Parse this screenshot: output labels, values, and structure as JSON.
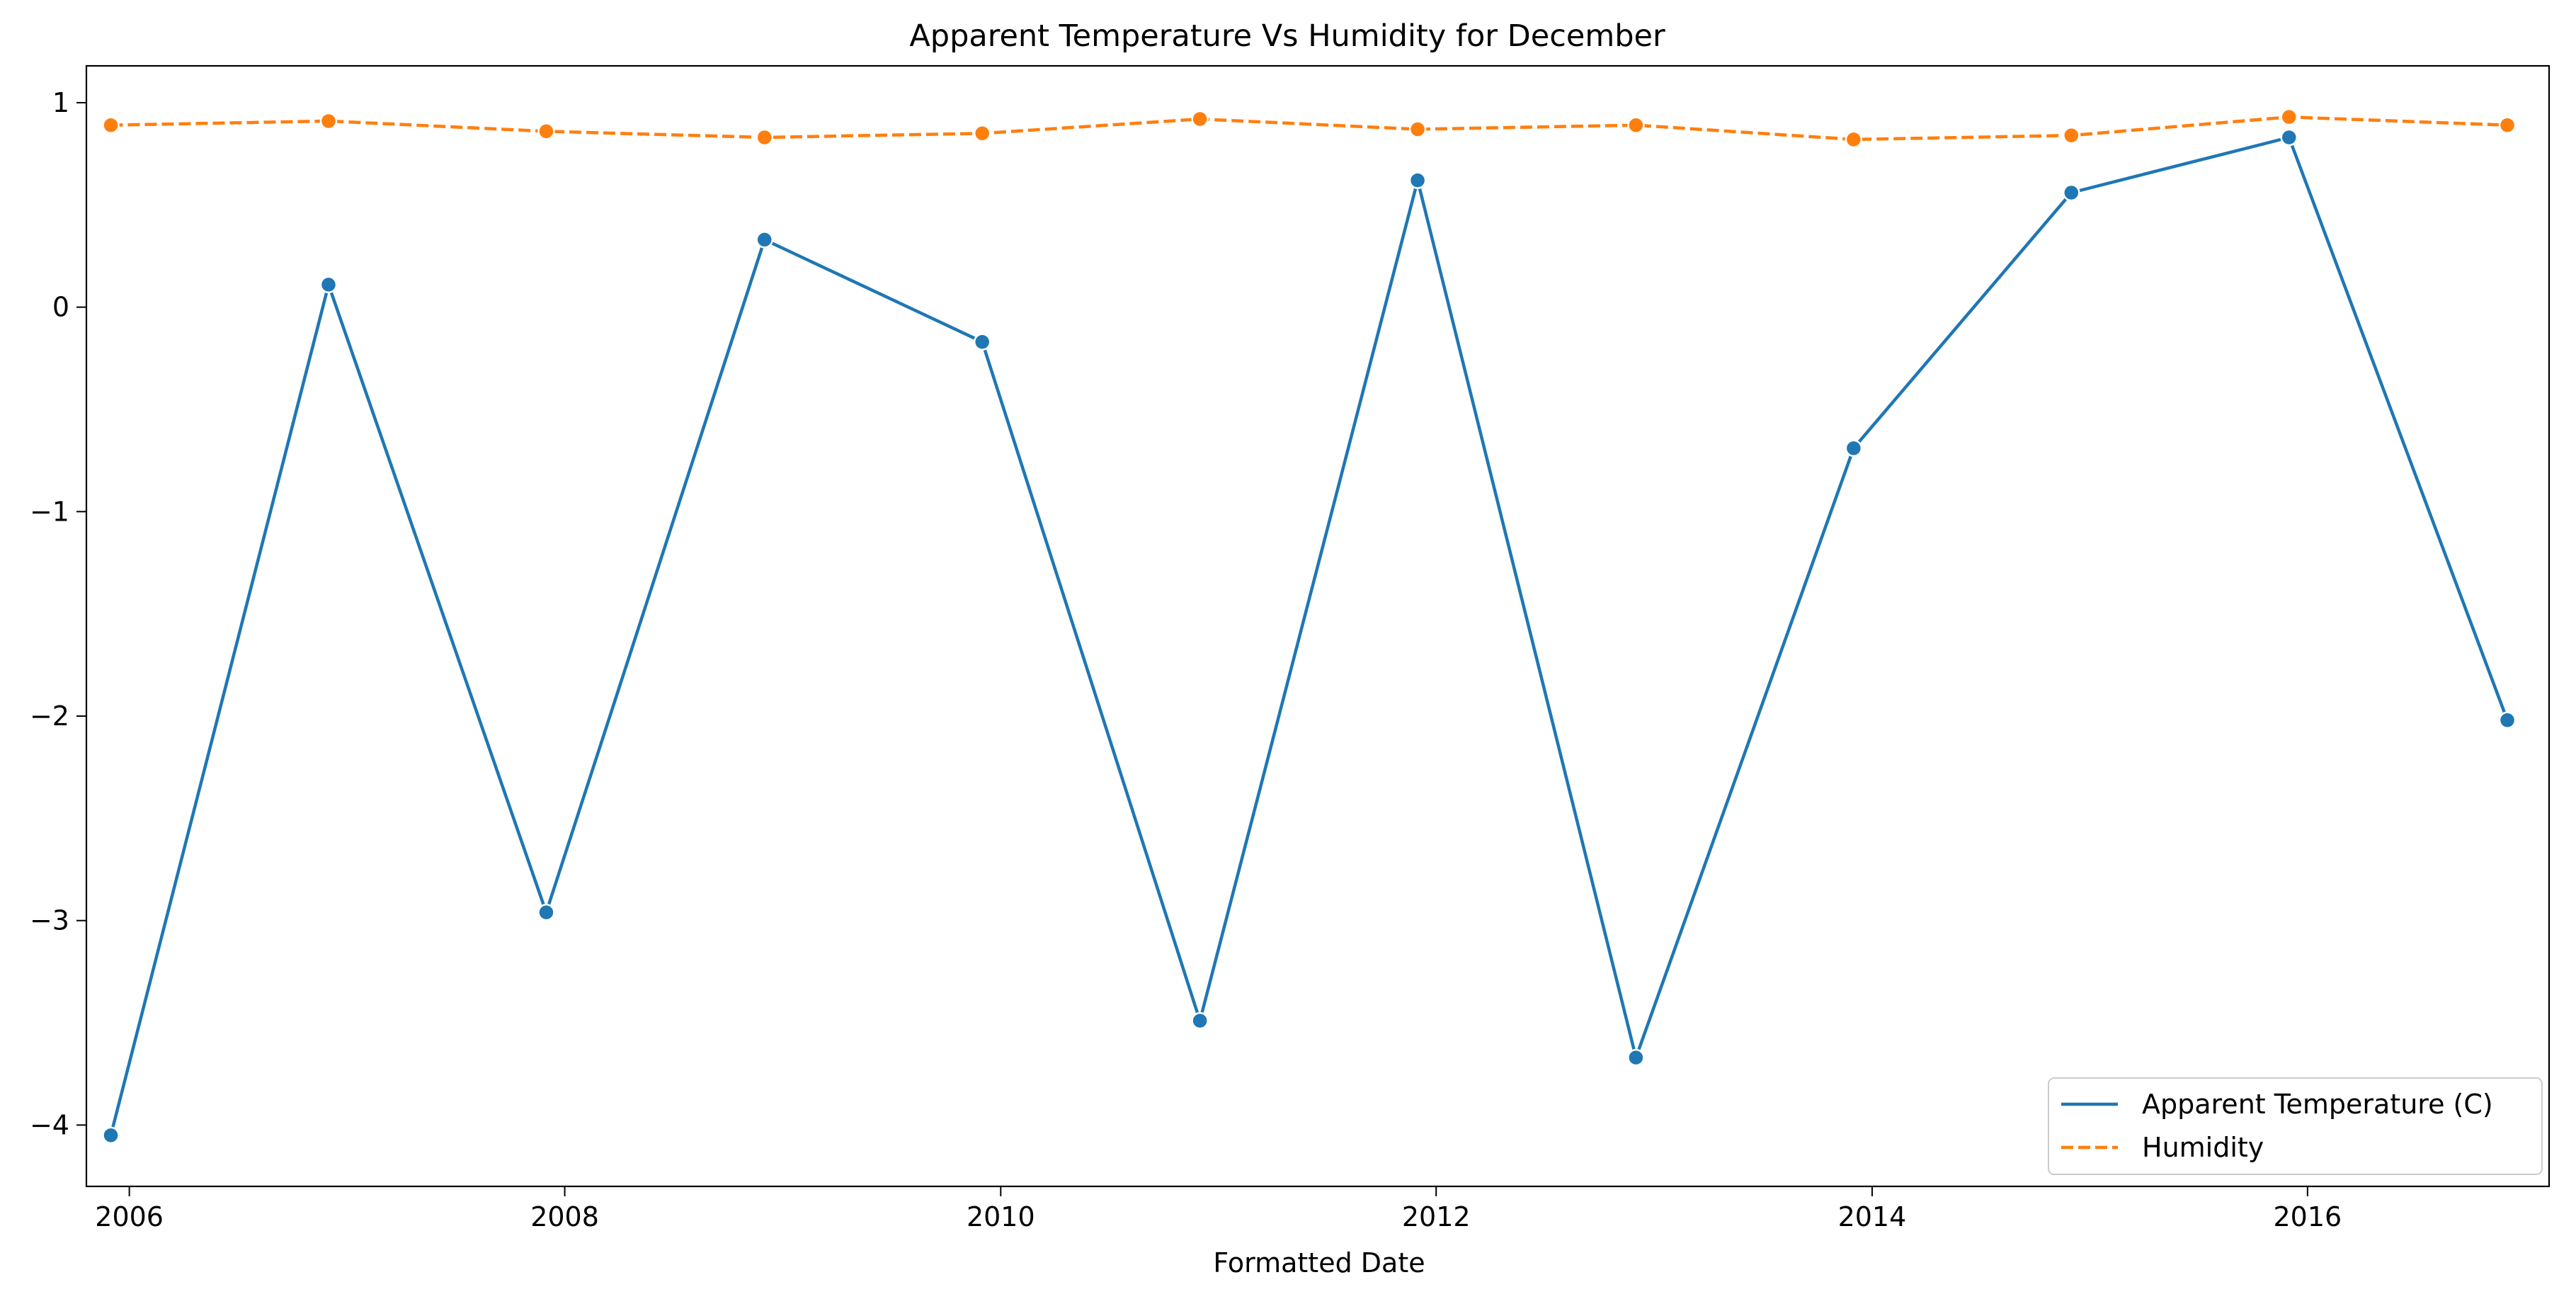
{
  "chart_data": {
    "type": "line",
    "title": "Apparent Temperature Vs Humidity for December",
    "xlabel": "Formatted Date",
    "ylabel": "",
    "x": [
      "2005-12",
      "2006-12",
      "2007-12",
      "2008-12",
      "2009-12",
      "2010-12",
      "2011-12",
      "2012-12",
      "2013-12",
      "2014-12",
      "2015-12",
      "2016-12"
    ],
    "xlim": [
      "2005-10-21",
      "2017-02-09"
    ],
    "ylim": [
      -4.3,
      1.18
    ],
    "xticks": [
      {
        "value": "2006-01-01",
        "label": "2006"
      },
      {
        "value": "2008-01-01",
        "label": "2008"
      },
      {
        "value": "2010-01-01",
        "label": "2010"
      },
      {
        "value": "2012-01-01",
        "label": "2012"
      },
      {
        "value": "2014-01-01",
        "label": "2014"
      },
      {
        "value": "2016-01-01",
        "label": "2016"
      }
    ],
    "yticks": [
      {
        "value": -4,
        "label": "−4"
      },
      {
        "value": -3,
        "label": "−3"
      },
      {
        "value": -2,
        "label": "−2"
      },
      {
        "value": -1,
        "label": "−1"
      },
      {
        "value": 0,
        "label": "0"
      },
      {
        "value": 1,
        "label": "1"
      }
    ],
    "grid": false,
    "legend_position": "bottom-right",
    "series": [
      {
        "name": "Apparent Temperature (C)",
        "color": "#1f77b4",
        "dash": "solid",
        "values": [
          -4.05,
          0.11,
          -2.96,
          0.33,
          -0.17,
          -3.49,
          0.62,
          -3.67,
          -0.69,
          0.56,
          0.83,
          -2.02
        ]
      },
      {
        "name": "Humidity",
        "color": "#ff7f0e",
        "dash": "dashed",
        "values": [
          0.89,
          0.91,
          0.86,
          0.83,
          0.85,
          0.92,
          0.87,
          0.89,
          0.82,
          0.84,
          0.93,
          0.89
        ]
      }
    ]
  }
}
